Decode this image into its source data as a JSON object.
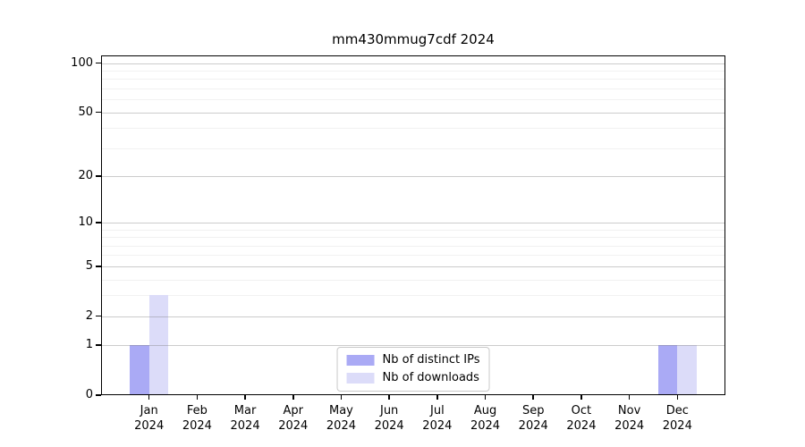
{
  "chart_data": {
    "type": "bar",
    "title": "mm430mmug7cdf 2024",
    "categories": [
      "Jan",
      "Feb",
      "Mar",
      "Apr",
      "May",
      "Jun",
      "Jul",
      "Aug",
      "Sep",
      "Oct",
      "Nov",
      "Dec"
    ],
    "x_year_label": "2024",
    "series": [
      {
        "name": "Nb of distinct IPs",
        "color": "#aaaaf5",
        "values": [
          1,
          0,
          0,
          0,
          0,
          0,
          0,
          0,
          0,
          0,
          0,
          1
        ]
      },
      {
        "name": "Nb of downloads",
        "color": "#dcdcf9",
        "values": [
          3,
          0,
          0,
          0,
          0,
          0,
          0,
          0,
          0,
          0,
          0,
          1
        ]
      }
    ],
    "xlabel": "",
    "ylabel": "",
    "yscale": "log1p",
    "ylim": [
      0,
      111.5
    ],
    "yticks_major": [
      0,
      1,
      2,
      5,
      10,
      20,
      50,
      100
    ],
    "yticks_minor": [
      3,
      4,
      6,
      7,
      8,
      9,
      30,
      40,
      60,
      70,
      80,
      90
    ],
    "grid": {
      "major_color": "rgba(120,120,120,0.38)",
      "minor_color": "rgba(0,0,0,0.055)"
    },
    "legend_position": "lower center"
  }
}
